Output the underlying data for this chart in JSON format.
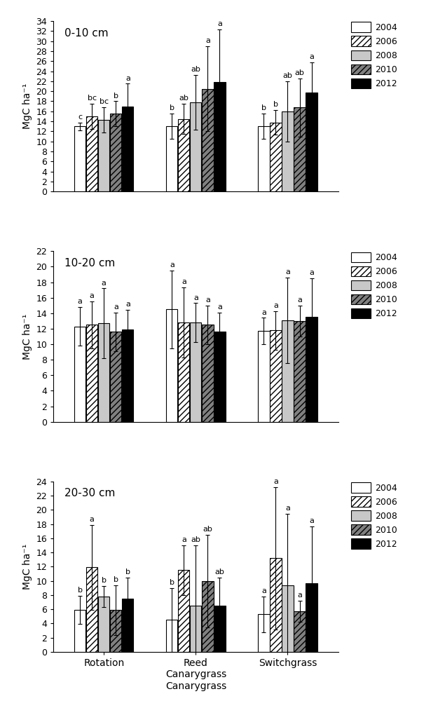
{
  "panels": [
    {
      "title": "0-10 cm",
      "ylim": [
        0,
        34
      ],
      "yticks": [
        0,
        2,
        4,
        6,
        8,
        10,
        12,
        14,
        16,
        18,
        20,
        22,
        24,
        26,
        28,
        30,
        32,
        34
      ],
      "values": [
        [
          13.0,
          15.0,
          14.3,
          15.5,
          17.0
        ],
        [
          13.0,
          14.5,
          17.8,
          20.5,
          21.8
        ],
        [
          13.0,
          13.8,
          16.0,
          16.8,
          19.7
        ]
      ],
      "errors": [
        [
          0.8,
          2.5,
          2.5,
          2.5,
          4.5
        ],
        [
          2.5,
          3.0,
          5.5,
          8.5,
          10.5
        ],
        [
          2.5,
          2.5,
          6.0,
          5.8,
          6.0
        ]
      ],
      "letters": [
        [
          "c",
          "bc",
          "bc",
          "b",
          "a"
        ],
        [
          "b",
          "ab",
          "ab",
          "a",
          "a"
        ],
        [
          "b",
          "b",
          "ab",
          "ab",
          "a"
        ]
      ]
    },
    {
      "title": "10-20 cm",
      "ylim": [
        0,
        22
      ],
      "yticks": [
        0,
        2,
        4,
        6,
        8,
        10,
        12,
        14,
        16,
        18,
        20,
        22
      ],
      "values": [
        [
          12.3,
          12.5,
          12.7,
          11.6,
          11.9
        ],
        [
          14.5,
          12.8,
          12.8,
          12.5,
          11.6
        ],
        [
          11.7,
          11.8,
          13.1,
          13.0,
          13.5
        ]
      ],
      "errors": [
        [
          2.5,
          3.0,
          4.5,
          2.5,
          2.5
        ],
        [
          5.0,
          4.5,
          2.5,
          2.5,
          2.5
        ],
        [
          1.7,
          2.5,
          5.5,
          2.0,
          5.0
        ]
      ],
      "letters": [
        [
          "a",
          "a",
          "a",
          "a",
          "a"
        ],
        [
          "a",
          "a",
          "a",
          "a",
          "a"
        ],
        [
          "a",
          "a",
          "a",
          "a",
          "a"
        ]
      ]
    },
    {
      "title": "20-30 cm",
      "ylim": [
        0,
        24
      ],
      "yticks": [
        0,
        2,
        4,
        6,
        8,
        10,
        12,
        14,
        16,
        18,
        20,
        22,
        24
      ],
      "values": [
        [
          5.9,
          11.9,
          7.8,
          5.9,
          7.5
        ],
        [
          4.5,
          11.5,
          6.5,
          10.0,
          6.5
        ],
        [
          5.3,
          13.2,
          9.4,
          5.7,
          9.7
        ]
      ],
      "errors": [
        [
          2.0,
          6.0,
          1.5,
          3.5,
          3.0
        ],
        [
          4.5,
          3.5,
          8.5,
          6.5,
          4.0
        ],
        [
          2.5,
          10.0,
          10.0,
          1.5,
          8.0
        ]
      ],
      "letters": [
        [
          "b",
          "a",
          "b",
          "b",
          "b"
        ],
        [
          "b",
          "a",
          "ab",
          "ab",
          "ab"
        ],
        [
          "a",
          "a",
          "a",
          "a",
          "a"
        ]
      ]
    }
  ],
  "years": [
    "2004",
    "2006",
    "2008",
    "2010",
    "2012"
  ],
  "bar_patterns": [
    "",
    "////",
    "",
    "////",
    ""
  ],
  "bar_facecolors": [
    "white",
    "white",
    "#c8c8c8",
    "#808080",
    "black"
  ],
  "bar_edgecolors": [
    "black",
    "black",
    "black",
    "black",
    "black"
  ],
  "ylabel": "MgC ha⁻¹",
  "legend_labels": [
    "2004",
    "2006",
    "2008",
    "2010",
    "2012"
  ],
  "group_labels": [
    "Rotation",
    "Reed\nCanarygrass",
    "Switchgrass"
  ],
  "xlabel_bottom": "Canarygrass"
}
